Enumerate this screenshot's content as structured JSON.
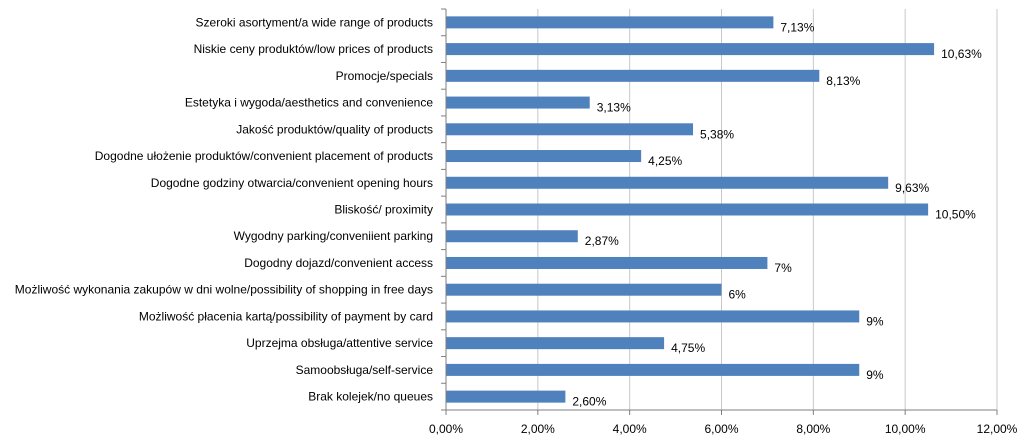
{
  "chart_data": {
    "type": "bar",
    "orientation": "horizontal",
    "categories": [
      "Szeroki asortyment/a  wide range of products",
      "Niskie ceny produktów/low  prices of products",
      "Promocje/specials",
      "Estetyka i wygoda/aesthetics and convenience",
      "Jakość produktów/quality  of products",
      "Dogodne ułożenie produktów/convenient placement of products",
      "Dogodne godziny otwarcia/convenient opening hours",
      "Bliskość/ proximity",
      "Wygodny parking/conveniient parking",
      "Dogodny dojazd/convenient access",
      "Możliwość wykonania  zakupów  w dni wolne/possibility of shopping in free days",
      "Możliwość płacenia kartą/possibility of payment by card",
      "Uprzejma obsługa/attentive  service",
      "Samoobsługa/self-service",
      "Brak kolejek/no queues"
    ],
    "values": [
      7.13,
      10.63,
      8.13,
      3.13,
      5.38,
      4.25,
      9.63,
      10.5,
      2.87,
      7,
      6,
      9,
      4.75,
      9,
      2.6
    ],
    "value_labels": [
      "7,13%",
      "10,63%",
      "8,13%",
      "3,13%",
      "5,38%",
      "4,25%",
      "9,63%",
      "10,50%",
      "2,87%",
      "7%",
      "6%",
      "9%",
      "4,75%",
      "9%",
      "2,60%"
    ],
    "xlim": [
      0,
      12
    ],
    "xticks": [
      0,
      2,
      4,
      6,
      8,
      10,
      12
    ],
    "xtick_labels": [
      "0,00%",
      "2,00%",
      "4,00%",
      "6,00%",
      "8,00%",
      "10,00%",
      "12,00%"
    ],
    "title": "",
    "xlabel": "",
    "ylabel": "",
    "grid": true,
    "legend": "none",
    "colors": {
      "bar": "#4f81bd",
      "grid": "#c8c8c8",
      "axis": "#7f7f7f"
    }
  }
}
